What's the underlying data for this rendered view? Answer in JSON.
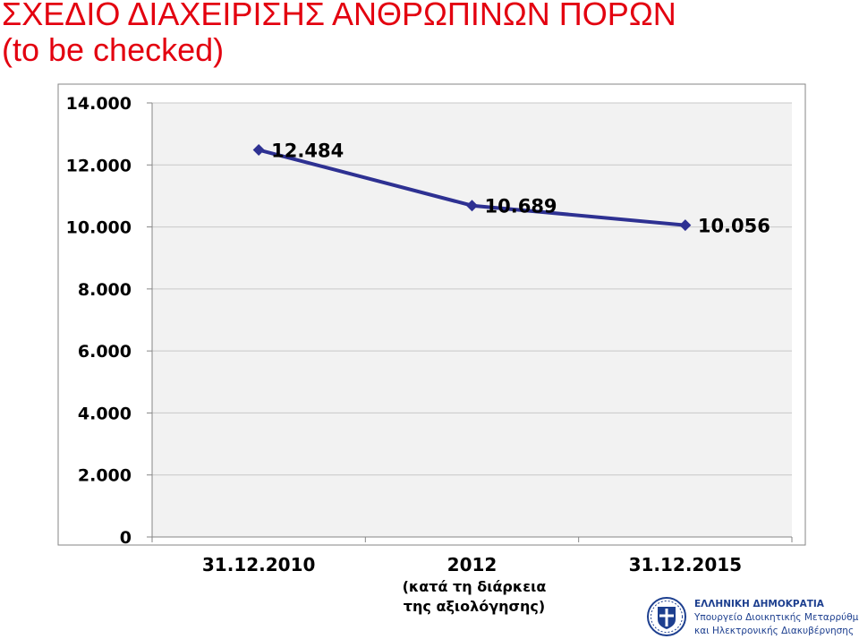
{
  "title": {
    "line1": "ΣΧΕΔΙΟ ΔΙΑΧΕΙΡΙΣΗΣ ΑΝΘΡΩΠΙΝΩΝ ΠΟΡΩΝ",
    "line2": "(to be checked)",
    "color": "#e3000f"
  },
  "chart_data": {
    "type": "line",
    "categories": [
      "31.12.2010",
      "2012",
      "31.12.2015"
    ],
    "category_note": [
      "(κατά τη διάρκεια",
      "της αξιολόγησης)"
    ],
    "values": [
      12484,
      10689,
      10056
    ],
    "value_labels": [
      "12.484",
      "10.689",
      "10.056"
    ],
    "ylim": [
      0,
      14000
    ],
    "yticks": [
      0,
      2000,
      4000,
      6000,
      8000,
      10000,
      12000,
      14000
    ],
    "ytick_labels": [
      "0",
      "2.000",
      "4.000",
      "6.000",
      "8.000",
      "10.000",
      "12.000",
      "14.000"
    ],
    "grid": true,
    "line_color": "#2e3192",
    "plot_background": "#f2f2f2",
    "grid_color": "#c8c8c8"
  },
  "footer": {
    "ministry_line1": "ΕΛΛΗΝΙΚΗ ΔΗΜΟΚΡΑΤΙΑ",
    "ministry_line2": "Υπουργείο Διοικητικής Μεταρρύθμισης",
    "ministry_line3": "και Ηλεκτρονικής Διακυβέρνησης",
    "brand_color": "#1d3f8f",
    "emblem_icon": "greek-coat-of-arms-icon"
  }
}
